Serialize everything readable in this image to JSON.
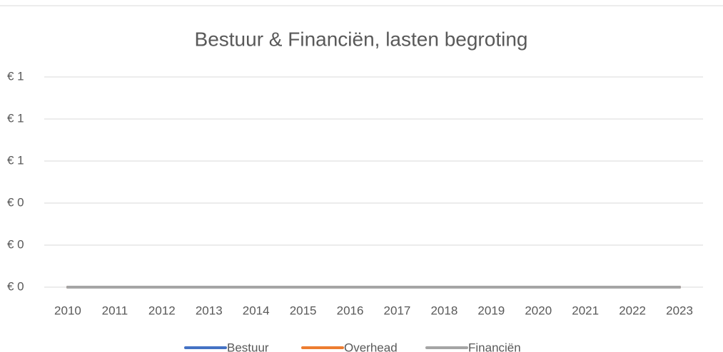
{
  "chart_data": {
    "type": "line",
    "title": "Bestuur & Financiën, lasten begroting",
    "categories": [
      "2010",
      "2011",
      "2012",
      "2013",
      "2014",
      "2015",
      "2016",
      "2017",
      "2018",
      "2019",
      "2020",
      "2021",
      "2022",
      "2023"
    ],
    "series": [
      {
        "name": "Bestuur",
        "color": "#4472c4",
        "values": [
          0,
          0,
          0,
          0,
          0,
          0,
          0,
          0,
          0,
          0,
          0,
          0,
          0,
          0
        ]
      },
      {
        "name": "Overhead",
        "color": "#ed7d31",
        "values": [
          0,
          0,
          0,
          0,
          0,
          0,
          0,
          0,
          0,
          0,
          0,
          0,
          0,
          0
        ]
      },
      {
        "name": "Financiën",
        "color": "#a5a5a5",
        "values": [
          0,
          0,
          0,
          0,
          0,
          0,
          0,
          0,
          0,
          0,
          0,
          0,
          0,
          0
        ]
      }
    ],
    "ylim": [
      0,
      1
    ],
    "yticks": [
      {
        "value": 0,
        "label": "€ 0"
      },
      {
        "value": 0.2,
        "label": "€ 0"
      },
      {
        "value": 0.4,
        "label": "€ 0"
      },
      {
        "value": 0.6,
        "label": "€ 1"
      },
      {
        "value": 0.8,
        "label": "€ 1"
      },
      {
        "value": 1,
        "label": "€ 1"
      }
    ],
    "grid": true,
    "legend": "bottom"
  }
}
